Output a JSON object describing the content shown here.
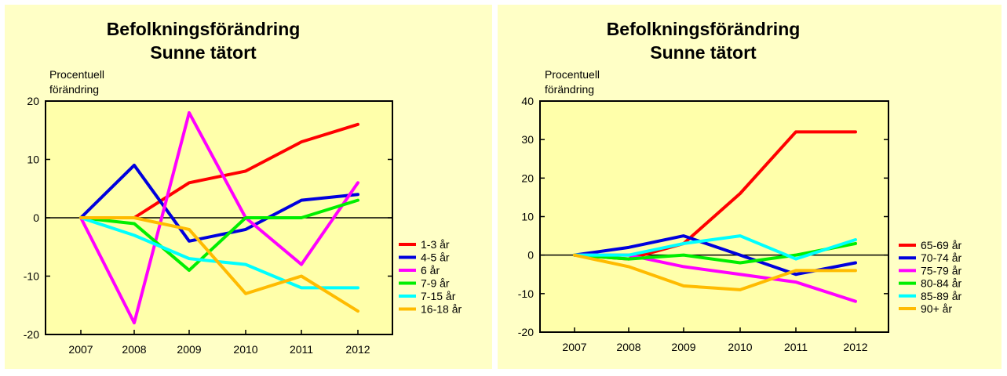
{
  "chart_data": [
    {
      "type": "line",
      "title": [
        "Befolkningsförändring",
        "Sunne tätort"
      ],
      "ylabel": [
        "Procentuell",
        "förändring"
      ],
      "xlabel": "",
      "x": [
        2007,
        2008,
        2009,
        2010,
        2011,
        2012
      ],
      "ylim": [
        -20,
        20
      ],
      "yticks": [
        -20,
        -10,
        0,
        10,
        20
      ],
      "legend_position": "right",
      "series": [
        {
          "name": "1-3 år",
          "color": "#ff0000",
          "values": [
            0,
            0,
            6,
            8,
            13,
            16
          ]
        },
        {
          "name": "4-5 år",
          "color": "#0000dd",
          "values": [
            0,
            9,
            -4,
            -2,
            3,
            4
          ]
        },
        {
          "name": "6 år",
          "color": "#ff00ff",
          "values": [
            0,
            -18,
            18,
            0,
            -8,
            6
          ]
        },
        {
          "name": "7-9 år",
          "color": "#00ee00",
          "values": [
            0,
            -1,
            -9,
            0,
            0,
            3
          ]
        },
        {
          "name": "7-15 år",
          "color": "#00ffff",
          "values": [
            0,
            -3,
            -7,
            -8,
            -12,
            -12
          ]
        },
        {
          "name": "16-18 år",
          "color": "#ffbb00",
          "values": [
            0,
            0,
            -2,
            -13,
            -10,
            -16
          ]
        }
      ]
    },
    {
      "type": "line",
      "title": [
        "Befolkningsförändring",
        "Sunne tätort"
      ],
      "ylabel": [
        "Procentuell",
        "förändring"
      ],
      "xlabel": "",
      "x": [
        2007,
        2008,
        2009,
        2010,
        2011,
        2012
      ],
      "ylim": [
        -20,
        40
      ],
      "yticks": [
        -20,
        -10,
        0,
        10,
        20,
        30,
        40
      ],
      "legend_position": "right",
      "series": [
        {
          "name": "65-69 år",
          "color": "#ff0000",
          "values": [
            0,
            -1,
            3,
            16,
            32,
            32
          ]
        },
        {
          "name": "70-74 år",
          "color": "#0000dd",
          "values": [
            0,
            2,
            5,
            0,
            -5,
            -2
          ]
        },
        {
          "name": "75-79 år",
          "color": "#ff00ff",
          "values": [
            0,
            0,
            -3,
            -5,
            -7,
            -12
          ]
        },
        {
          "name": "80-84 år",
          "color": "#00ee00",
          "values": [
            0,
            -1,
            0,
            -2,
            0,
            3
          ]
        },
        {
          "name": "85-89 år",
          "color": "#00ffff",
          "values": [
            0,
            0,
            3,
            5,
            -1,
            4
          ]
        },
        {
          "name": "90+ år",
          "color": "#ffbb00",
          "values": [
            0,
            -3,
            -8,
            -9,
            -4,
            -4
          ]
        }
      ]
    }
  ]
}
